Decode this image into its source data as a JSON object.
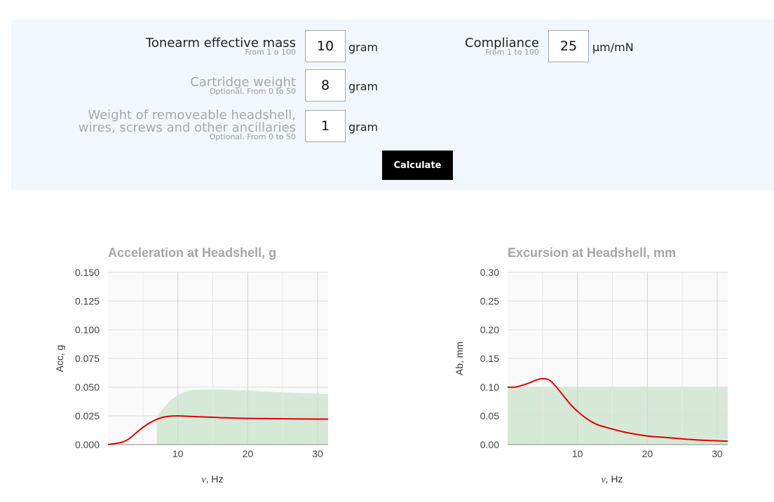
{
  "form": {
    "mass": {
      "label": "Tonearm effective mass",
      "hint": "From 1 o 100",
      "value": "10",
      "unit": "gram"
    },
    "cartridge": {
      "label": "Cartridge weight",
      "hint": "Optional. From 0 to 50",
      "value": "8",
      "unit": "gram"
    },
    "headshell": {
      "label_line1": "Weight of removeable headshell,",
      "label_line2": "wires, screws and other ancillaries",
      "hint": "Optional. From 0 to 50",
      "value": "1",
      "unit": "gram"
    },
    "compliance": {
      "label": "Compliance",
      "hint": "From 1 to 100",
      "value": "25",
      "unit": "µm/mN"
    },
    "calculate_label": "Calculate"
  },
  "colors": {
    "curve": "#e00000",
    "area": "#d6e9d6",
    "plot_bg": "#fafafa",
    "grid": "#dddddd",
    "panel_bg": "#f2f7fd"
  },
  "chart_data": [
    {
      "type": "line",
      "title": "Acceleration at Headshell, g",
      "xlabel": "ν, Hz",
      "ylabel": "Acc, g",
      "xlim": [
        0,
        31.5
      ],
      "ylim": [
        0,
        0.15
      ],
      "xticks": [
        "10",
        "20",
        "30"
      ],
      "yticks": [
        "0.000",
        "0.025",
        "0.050",
        "0.075",
        "0.100",
        "0.125",
        "0.150"
      ],
      "grid": true,
      "series": [
        {
          "x": [
            0,
            2,
            3,
            4,
            5,
            6,
            7,
            8,
            9,
            10,
            11,
            12,
            14,
            16,
            20,
            25,
            31.5
          ],
          "y": [
            0,
            0.002,
            0.005,
            0.01,
            0.015,
            0.019,
            0.022,
            0.024,
            0.0248,
            0.025,
            0.0248,
            0.0245,
            0.024,
            0.0235,
            0.0228,
            0.0225,
            0.0222
          ]
        }
      ],
      "area": {
        "x": [
          7,
          8,
          9,
          10,
          11,
          12,
          14,
          16,
          20,
          25,
          31.5
        ],
        "y": [
          0.025,
          0.032,
          0.039,
          0.043,
          0.046,
          0.0475,
          0.048,
          0.048,
          0.047,
          0.0455,
          0.044
        ]
      }
    },
    {
      "type": "line",
      "title": "Excursion at Headshell, mm",
      "xlabel": "ν, Hz",
      "ylabel": "Ab, mm",
      "xlim": [
        0,
        31.5
      ],
      "ylim": [
        0,
        0.3
      ],
      "xticks": [
        "10",
        "20",
        "30"
      ],
      "yticks": [
        "0.00",
        "0.05",
        "0.10",
        "0.15",
        "0.20",
        "0.25",
        "0.30"
      ],
      "grid": true,
      "series": [
        {
          "x": [
            0,
            1,
            2,
            3,
            4,
            5,
            6,
            7,
            8,
            9,
            10,
            11,
            12,
            13,
            15,
            17,
            20,
            23,
            26,
            29,
            31.5
          ],
          "y": [
            0.1,
            0.1,
            0.103,
            0.107,
            0.112,
            0.115,
            0.112,
            0.1,
            0.085,
            0.07,
            0.058,
            0.048,
            0.04,
            0.034,
            0.027,
            0.021,
            0.015,
            0.012,
            0.009,
            0.007,
            0.006
          ]
        }
      ],
      "area": {
        "x": [
          0,
          31.5
        ],
        "y": [
          0.1,
          0.1
        ]
      }
    }
  ]
}
